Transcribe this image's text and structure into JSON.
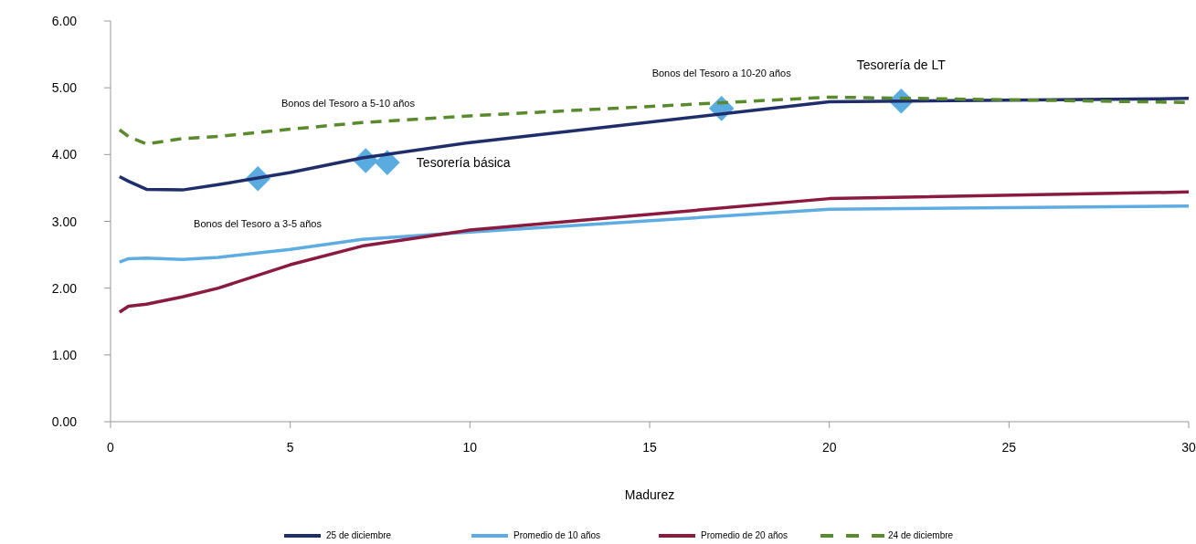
{
  "chart_data": {
    "type": "line",
    "xlabel": "Madurez",
    "xlim": [
      0,
      30
    ],
    "xticks": [
      0,
      5,
      10,
      15,
      20,
      25,
      30
    ],
    "ylim": [
      0,
      6
    ],
    "yticks": [
      {
        "value": 0,
        "label": "0.00"
      },
      {
        "value": 1,
        "label": "1.00"
      },
      {
        "value": 2,
        "label": "2.00"
      },
      {
        "value": 3,
        "label": "3.00"
      },
      {
        "value": 4,
        "label": "4.00"
      },
      {
        "value": 5,
        "label": "5.00"
      },
      {
        "value": 6,
        "label": "6.00"
      }
    ],
    "grid": false,
    "legend": "bottom",
    "x": [
      0.25,
      0.5,
      1,
      2,
      3,
      5,
      7,
      10,
      20,
      30
    ],
    "series": [
      {
        "name": "25 de diciembre",
        "color": "#1f2d6b",
        "values": [
          3.67,
          3.6,
          3.48,
          3.47,
          3.55,
          3.73,
          3.95,
          4.18,
          4.79,
          4.84
        ]
      },
      {
        "name": "Promedio de 10 años",
        "color": "#5dade2",
        "values": [
          2.39,
          2.44,
          2.45,
          2.43,
          2.46,
          2.58,
          2.73,
          2.84,
          3.18,
          3.23
        ]
      },
      {
        "name": "Promedio de 20 años",
        "color": "#8b1a3f",
        "values": [
          1.64,
          1.73,
          1.76,
          1.87,
          2.0,
          2.35,
          2.63,
          2.87,
          3.34,
          3.44
        ]
      },
      {
        "name": "24 de diciembre",
        "color": "#5a8a2e",
        "line_style": "dashed",
        "values": [
          4.37,
          4.27,
          4.16,
          4.24,
          4.27,
          4.38,
          4.48,
          4.58,
          4.86,
          4.78
        ]
      },
      {
        "type": "scatter",
        "marker": "diamond",
        "color": "#5aace0",
        "x": [
          4.1,
          7.1,
          7.7,
          17,
          22
        ],
        "values": [
          3.64,
          3.91,
          3.88,
          4.69,
          4.8
        ]
      }
    ],
    "annotations": [
      "Bonos del Tesoro a 3-5 años",
      "Bonos del Tesoro a 5-10 años",
      {
        "text": "Tesorería básica",
        "x": 7.7,
        "y": 3.88
      },
      {
        "text": "Bonos del Tesoro a 10-20 años",
        "x": 17,
        "y": 4.69
      },
      {
        "text": "Tesorería de LT",
        "x": 22,
        "y": 4.8
      }
    ]
  }
}
